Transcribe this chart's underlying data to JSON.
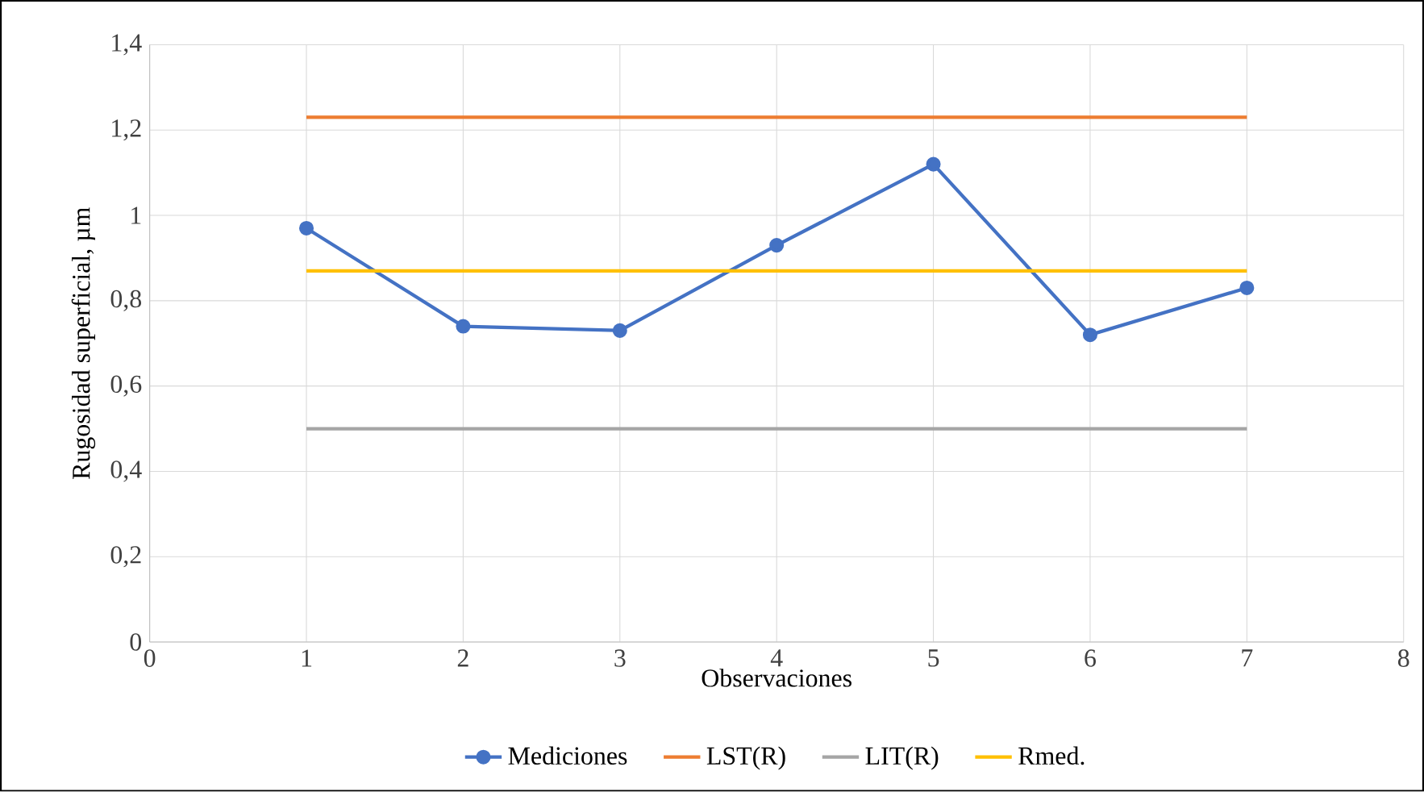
{
  "chart_data": {
    "type": "line",
    "xlabel": "Observaciones",
    "ylabel": "Rugosidad superficial, µm",
    "xlim": [
      0,
      8
    ],
    "xticks": [
      0,
      1,
      2,
      3,
      4,
      5,
      6,
      7,
      8
    ],
    "ylim": [
      0,
      1.4
    ],
    "yticks": [
      0,
      {
        "value": 0.2,
        "label": "0,2"
      },
      {
        "value": 0.4,
        "label": "0,4"
      },
      {
        "value": 0.6,
        "label": "0,6"
      },
      {
        "value": 0.8,
        "label": "0,8"
      },
      1,
      {
        "value": 1.2,
        "label": "1,2"
      },
      {
        "value": 1.4,
        "label": "1,4"
      }
    ],
    "grid": true,
    "legend": "bottom",
    "line_style": "solid",
    "series": [
      {
        "name": "Mediciones",
        "color": "#4472c4",
        "marker": "circle",
        "x": [
          1,
          2,
          3,
          4,
          5,
          6,
          7
        ],
        "values": [
          0.97,
          0.74,
          0.73,
          0.93,
          1.12,
          0.72,
          0.83
        ]
      },
      {
        "name": "LST(R)",
        "color": "#ed7d31",
        "marker": "none",
        "x": [
          1,
          7
        ],
        "values": [
          1.23,
          1.23
        ]
      },
      {
        "name": "LIT(R)",
        "color": "#a5a5a5",
        "marker": "none",
        "x": [
          1,
          7
        ],
        "values": [
          0.5,
          0.5
        ]
      },
      {
        "name": "Rmed.",
        "color": "#ffc000",
        "marker": "none",
        "x": [
          1,
          7
        ],
        "values": [
          0.87,
          0.87
        ]
      }
    ]
  }
}
